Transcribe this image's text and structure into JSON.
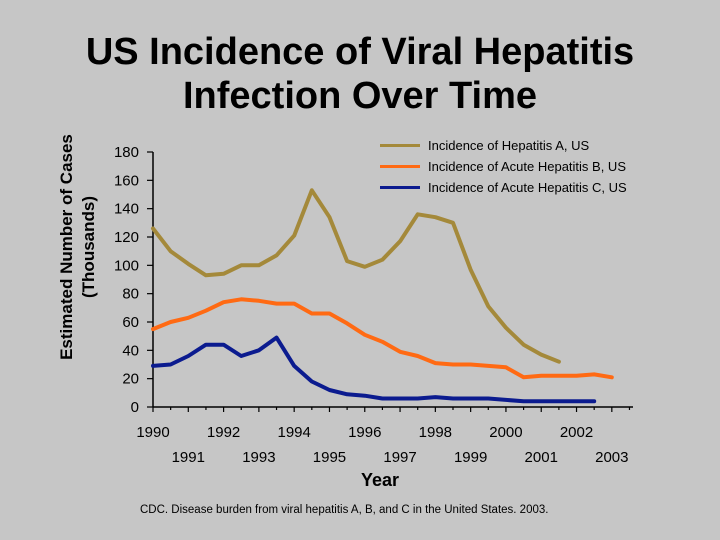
{
  "chart_data": {
    "type": "line",
    "title_lines": [
      "US Incidence of Viral Hepatitis",
      "Infection Over Time"
    ],
    "ylabel_lines": [
      "Estimated Number of Cases",
      "(Thousands)"
    ],
    "xlabel": "Year",
    "ylim": [
      0,
      180
    ],
    "xlim": [
      1990,
      2003.6
    ],
    "y_ticks": [
      "180",
      "160",
      "140",
      "120",
      "100",
      "80",
      "60",
      "40",
      "20",
      "0"
    ],
    "x_ticks_upper": [
      "1990",
      "1992",
      "1994",
      "1996",
      "1998",
      "2000",
      "2002"
    ],
    "x_ticks_lower": [
      "1991",
      "1993",
      "1995",
      "1997",
      "1999",
      "2001",
      "2003"
    ],
    "x": [
      1990,
      1990.5,
      1991,
      1991.5,
      1992,
      1992.5,
      1993,
      1993.5,
      1994,
      1994.5,
      1995,
      1995.5,
      1996,
      1996.5,
      1997,
      1997.5,
      1998,
      1998.5,
      1999,
      1999.5,
      2000,
      2000.5,
      2001,
      2001.5,
      2002,
      2002.5,
      2003,
      2003.5
    ],
    "series": [
      {
        "name": "Incidence of Hepatitis A, US",
        "color": "#a4893a",
        "values": [
          126,
          110,
          101,
          93,
          94,
          100,
          100,
          107,
          121,
          153,
          134,
          103,
          99,
          104,
          117,
          136,
          134,
          130,
          97,
          71,
          56,
          44,
          37,
          32,
          null,
          null,
          null,
          null
        ]
      },
      {
        "name": "Incidence of Acute Hepatitis B, US",
        "color": "#ff6a13",
        "values": [
          55,
          60,
          63,
          68,
          74,
          76,
          75,
          73,
          73,
          66,
          66,
          59,
          51,
          46,
          39,
          36,
          31,
          30,
          30,
          29,
          28,
          21,
          22,
          22,
          22,
          23,
          21,
          null
        ]
      },
      {
        "name": "Incidence of Acute Hepatitis C, US",
        "color": "#0b1b8f",
        "values": [
          29,
          30,
          36,
          44,
          44,
          36,
          40,
          49,
          29,
          18,
          12,
          9,
          8,
          6,
          6,
          6,
          7,
          6,
          6,
          6,
          5,
          4,
          4,
          4,
          4,
          4,
          null,
          null
        ]
      }
    ]
  },
  "source": "CDC. Disease burden from viral hepatitis A, B, and C in the United States. 2003."
}
